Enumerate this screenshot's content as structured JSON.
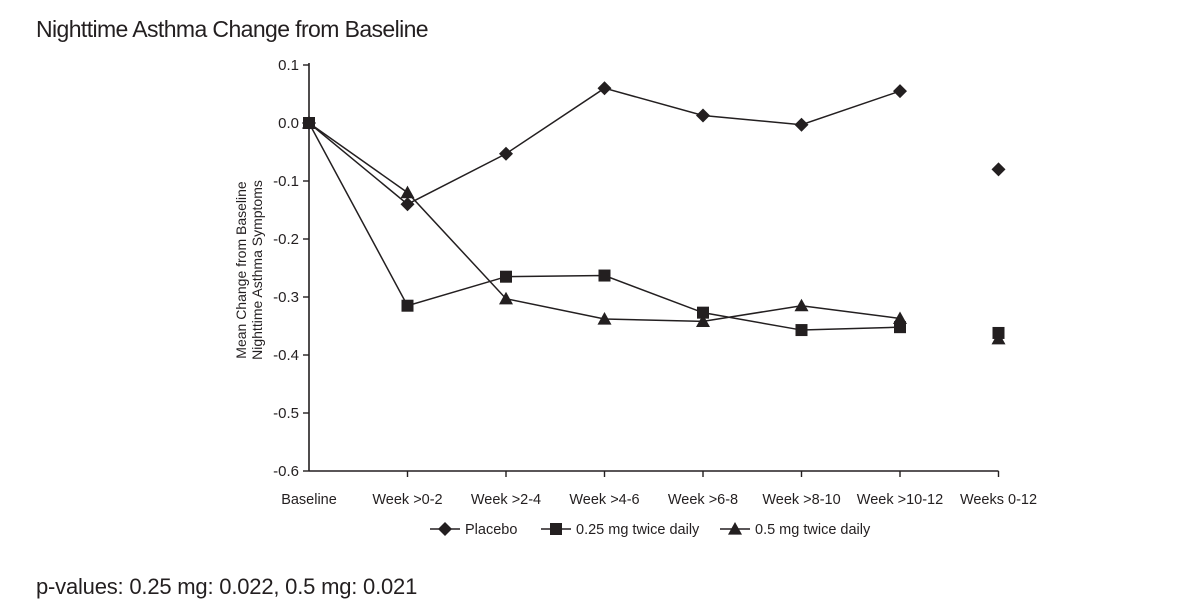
{
  "title": "Nighttime Asthma Change from Baseline",
  "footnote": "p-values: 0.25 mg: 0.022, 0.5 mg: 0.021",
  "chart_data": {
    "type": "line",
    "title": "Nighttime Asthma Change from Baseline",
    "ylabel_line1": "Mean Change from Baseline",
    "ylabel_line2": "Nighttime Asthma Symptoms",
    "xlabel": "",
    "ylim": [
      -0.6,
      0.1
    ],
    "yticks": [
      0.1,
      0.0,
      -0.1,
      -0.2,
      -0.3,
      -0.4,
      -0.5,
      -0.6
    ],
    "ytick_labels": [
      "0.1",
      "0.0",
      "-0.1",
      "-0.2",
      "-0.3",
      "-0.4",
      "-0.5",
      "-0.6"
    ],
    "categories": [
      "Baseline",
      "Week >0-2",
      "Week >2-4",
      "Week >4-6",
      "Week >6-8",
      "Week >8-10",
      "Week >10-12",
      "Weeks 0-12"
    ],
    "connected_count": 7,
    "legend_position": "bottom",
    "series": [
      {
        "name": "Placebo",
        "marker": "diamond",
        "values": [
          0.0,
          -0.14,
          -0.053,
          0.06,
          0.013,
          -0.003,
          0.055,
          -0.08
        ]
      },
      {
        "name": "0.25 mg twice daily",
        "marker": "square",
        "values": [
          0.0,
          -0.315,
          -0.265,
          -0.263,
          -0.327,
          -0.357,
          -0.352,
          -0.362
        ]
      },
      {
        "name": "0.5 mg twice daily",
        "marker": "triangle",
        "values": [
          0.0,
          -0.12,
          -0.303,
          -0.338,
          -0.342,
          -0.315,
          -0.337,
          -0.372
        ]
      }
    ]
  },
  "colors": {
    "ink": "#231f20",
    "background": "#ffffff"
  }
}
